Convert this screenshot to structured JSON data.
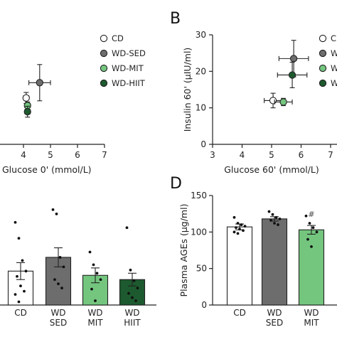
{
  "colors": {
    "CD": "#ffffff",
    "WD-SED": "#6d6d6d",
    "WD-MIT": "#74c67f",
    "WD-HIIT": "#1d5a2f",
    "stroke": "#222222"
  },
  "chart_data": [
    {
      "panel": "A",
      "type": "scatter",
      "title": "",
      "xlabel": "Glucose 0' (mmol/L)",
      "xlim": [
        3,
        7
      ],
      "xticks": [
        4,
        5,
        6,
        7
      ],
      "legend": [
        "CD",
        "WD-SED",
        "WD-MIT",
        "WD-HIIT"
      ],
      "legend_placement": "top-right",
      "series": [
        {
          "name": "CD",
          "x": 4.1,
          "y": 12.8,
          "xerr": 0.1,
          "yerr": 1.5
        },
        {
          "name": "WD-SED",
          "x": 4.6,
          "y": 17.0,
          "xerr": 0.4,
          "yerr": 5.0
        },
        {
          "name": "WD-MIT",
          "x": 4.15,
          "y": 10.7,
          "xerr": 0.1,
          "yerr": 1.0
        },
        {
          "name": "WD-HIIT",
          "x": 4.15,
          "y": 9.0,
          "xerr": 0.1,
          "yerr": 1.5
        }
      ]
    },
    {
      "panel": "B",
      "type": "scatter",
      "title": "",
      "xlabel": "Glucose 60' (mmol/L)",
      "ylabel": "Insulin 60' (µIU/ml)",
      "xlim": [
        3,
        7
      ],
      "ylim": [
        0,
        30
      ],
      "xticks": [
        3,
        4,
        5,
        6,
        7
      ],
      "yticks": [
        0,
        10,
        20,
        30
      ],
      "legend": [
        "CD",
        "WD-SED",
        "WD-MIT",
        "WD-HIIT"
      ],
      "legend_placement": "top-right",
      "series": [
        {
          "name": "CD",
          "x": 5.05,
          "y": 12.0,
          "xerr": 0.3,
          "yerr": 2.0
        },
        {
          "name": "WD-SED",
          "x": 5.75,
          "y": 23.5,
          "xerr": 0.5,
          "yerr": 5.0
        },
        {
          "name": "WD-MIT",
          "x": 5.4,
          "y": 11.6,
          "xerr": 0.3,
          "yerr": 1.0
        },
        {
          "name": "WD-HIIT",
          "x": 5.7,
          "y": 19.0,
          "xerr": 0.5,
          "yerr": 3.5
        }
      ]
    },
    {
      "panel": "C",
      "type": "bar",
      "title": "",
      "ylim": [
        0,
        100
      ],
      "categories": [
        "CD",
        "WD SED",
        "WD MIT",
        "WD HIIT"
      ],
      "values": [
        32,
        45,
        28,
        24
      ],
      "errors": [
        8,
        9,
        7,
        6
      ],
      "points": [
        [
          78,
          63,
          42,
          32,
          27,
          18,
          13,
          10,
          3
        ],
        [
          90,
          86,
          45,
          36,
          24,
          20,
          16
        ],
        [
          50,
          38,
          30,
          24,
          15,
          4
        ],
        [
          73,
          33,
          23,
          16,
          11,
          7,
          4
        ]
      ]
    },
    {
      "panel": "D",
      "type": "bar",
      "title": "",
      "ylabel": "Plasma AGEs (µg/ml)",
      "ylim": [
        0,
        150
      ],
      "yticks": [
        0,
        50,
        100,
        150
      ],
      "categories": [
        "CD",
        "WD SED",
        "WD MIT"
      ],
      "values": [
        107,
        118,
        103
      ],
      "errors": [
        4,
        3,
        6
      ],
      "significance": [
        null,
        null,
        "#"
      ],
      "points": [
        [
          120,
          112,
          110,
          108,
          106,
          104,
          102,
          100,
          98
        ],
        [
          128,
          124,
          120,
          118,
          116,
          112,
          110
        ],
        [
          122,
          112,
          106,
          100,
          90,
          80
        ]
      ]
    }
  ],
  "panel_letters": [
    "B",
    "D"
  ]
}
